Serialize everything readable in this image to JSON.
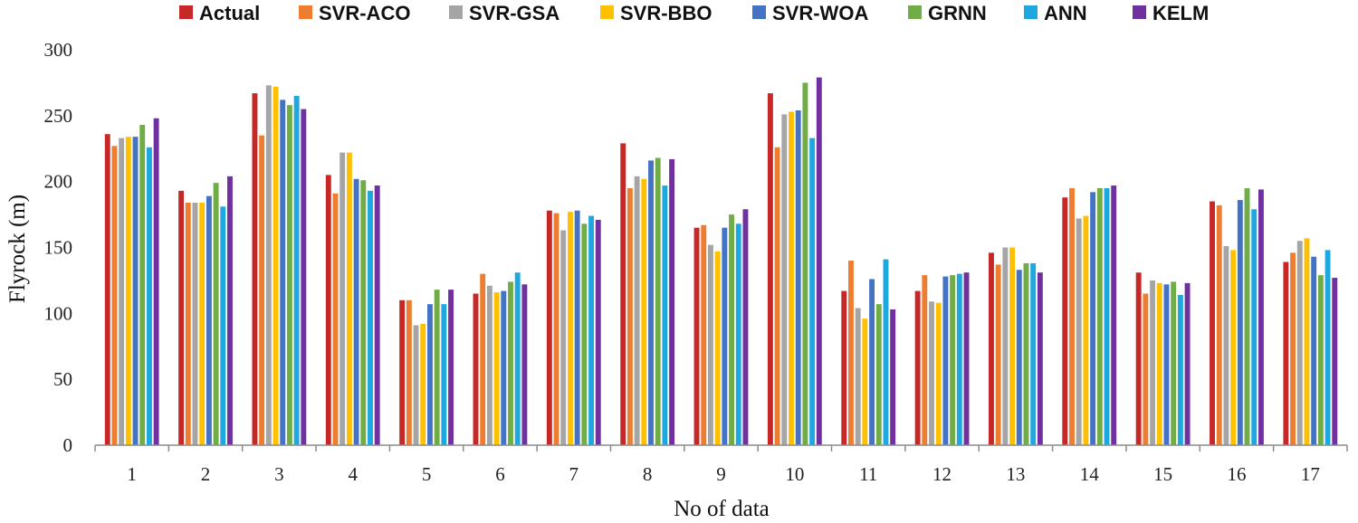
{
  "chart_data": {
    "type": "bar",
    "title": "",
    "xlabel": "No of data",
    "ylabel": "Flyrock (m)",
    "ylim": [
      0,
      300
    ],
    "yticks": [
      0,
      50,
      100,
      150,
      200,
      250,
      300
    ],
    "grid": false,
    "legend_position": "top",
    "categories": [
      "1",
      "2",
      "3",
      "4",
      "5",
      "6",
      "7",
      "8",
      "9",
      "10",
      "11",
      "12",
      "13",
      "14",
      "15",
      "16",
      "17"
    ],
    "series": [
      {
        "name": "Actual",
        "color": "#c62828",
        "values": [
          236,
          193,
          267,
          205,
          110,
          115,
          178,
          229,
          165,
          267,
          117,
          117,
          146,
          188,
          131,
          185,
          139
        ]
      },
      {
        "name": "SVR-ACO",
        "color": "#ed7d31",
        "values": [
          227,
          184,
          235,
          191,
          110,
          130,
          176,
          195,
          167,
          226,
          140,
          129,
          137,
          195,
          115,
          182,
          146
        ]
      },
      {
        "name": "SVR-GSA",
        "color": "#a5a5a5",
        "values": [
          233,
          184,
          273,
          222,
          91,
          121,
          163,
          204,
          152,
          251,
          104,
          109,
          150,
          172,
          125,
          151,
          155
        ]
      },
      {
        "name": "SVR-BBO",
        "color": "#ffc000",
        "values": [
          234,
          184,
          272,
          222,
          92,
          116,
          177,
          202,
          147,
          253,
          96,
          108,
          150,
          174,
          123,
          148,
          157
        ]
      },
      {
        "name": "SVR-WOA",
        "color": "#4472c4",
        "values": [
          234,
          189,
          262,
          202,
          107,
          117,
          178,
          216,
          165,
          254,
          126,
          128,
          133,
          192,
          122,
          186,
          143
        ]
      },
      {
        "name": "GRNN",
        "color": "#70ad47",
        "values": [
          243,
          199,
          258,
          201,
          118,
          124,
          168,
          218,
          175,
          275,
          107,
          129,
          138,
          195,
          124,
          195,
          129
        ]
      },
      {
        "name": "ANN",
        "color": "#1fa7e0",
        "values": [
          226,
          181,
          265,
          193,
          107,
          131,
          174,
          197,
          168,
          233,
          141,
          130,
          138,
          195,
          114,
          179,
          148
        ]
      },
      {
        "name": "KELM",
        "color": "#7030a0",
        "values": [
          248,
          204,
          255,
          197,
          118,
          122,
          171,
          217,
          179,
          279,
          103,
          131,
          131,
          197,
          123,
          194,
          127
        ]
      }
    ]
  }
}
